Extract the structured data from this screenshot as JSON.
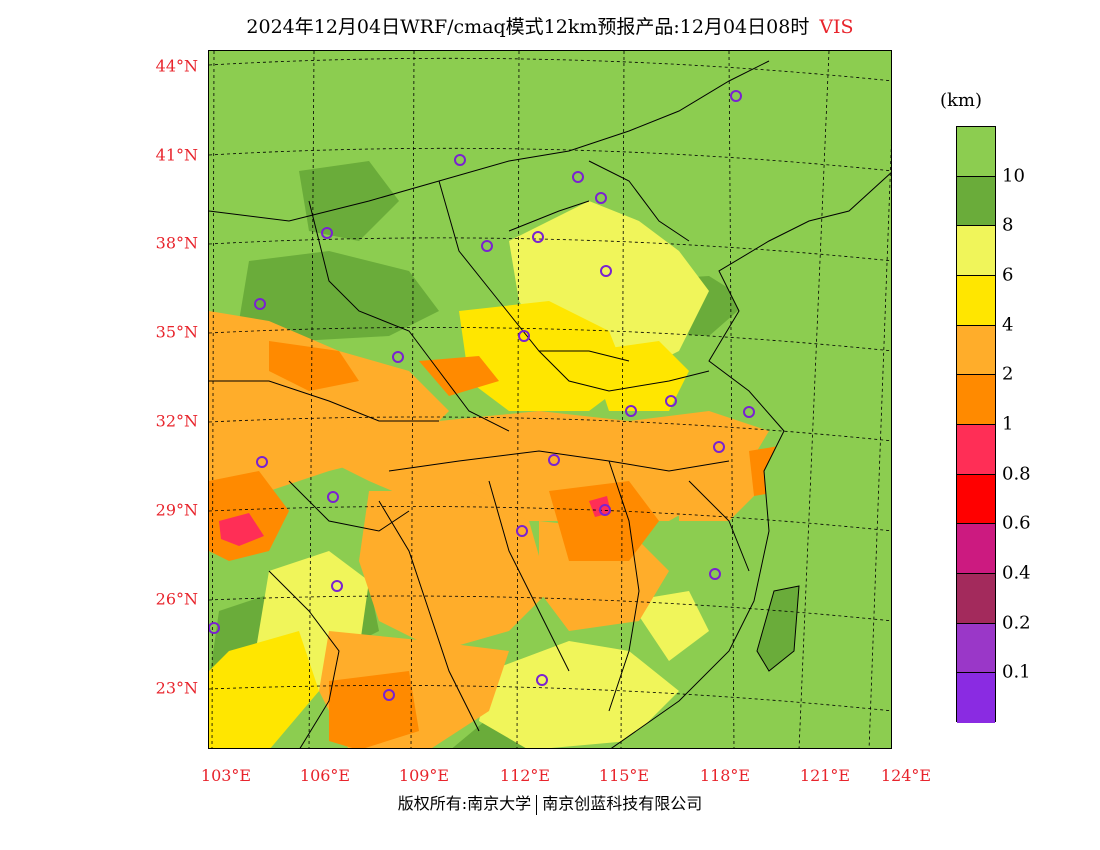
{
  "title": {
    "main": "2024年12月04日WRF/cmaq模式12km预报产品:12月04日08时",
    "variable": "VIS"
  },
  "lat_labels": [
    "44°N",
    "41°N",
    "38°N",
    "35°N",
    "32°N",
    "29°N",
    "26°N",
    "23°N"
  ],
  "lon_labels": [
    "103°E",
    "106°E",
    "109°E",
    "112°E",
    "115°E",
    "118°E",
    "121°E",
    "124°E"
  ],
  "legend": {
    "unit": "(km)",
    "ticks": [
      "10",
      "8",
      "6",
      "4",
      "2",
      "1",
      "0.8",
      "0.6",
      "0.4",
      "0.2",
      "0.1"
    ],
    "colors": [
      "#8ccd50",
      "#6aac3a",
      "#f0f55a",
      "#ffe600",
      "#ffad2a",
      "#ff8a00",
      "#ff2e56",
      "#ff0000",
      "#cc1a80",
      "#a32a5c",
      "#9a37c8",
      "#8a2be2"
    ]
  },
  "footer": {
    "left": "版权所有:南京大学",
    "right": "南京创蓝科技有限公司"
  }
}
